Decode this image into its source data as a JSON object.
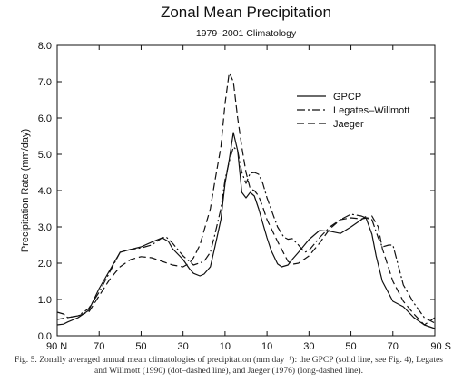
{
  "chart_data": {
    "type": "line",
    "title": "Zonal Mean Precipitation",
    "subtitle": "1979–2001 Climatology",
    "ylabel": "Precipitation Rate (mm/day)",
    "xlabel": "",
    "xlim": [
      -90,
      90
    ],
    "ylim": [
      0,
      8
    ],
    "x_ticks": [
      -90,
      -70,
      -50,
      -30,
      -10,
      10,
      30,
      50,
      70,
      90
    ],
    "x_tick_labels": [
      "90 N",
      "70",
      "50",
      "30",
      "10",
      "10",
      "30",
      "50",
      "70",
      "90 S"
    ],
    "y_ticks": [
      0,
      1,
      2,
      3,
      4,
      5,
      6,
      7,
      8
    ],
    "y_tick_labels": [
      "0.0",
      "1.0",
      "2.0",
      "3.0",
      "4.0",
      "5.0",
      "6.0",
      "7.0",
      "8.0"
    ],
    "legend_position": "upper-right",
    "grid": false,
    "series": [
      {
        "name": "GPCP",
        "style": "solid",
        "x": [
          -90,
          -87,
          -85,
          -80,
          -75,
          -70,
          -65,
          -60,
          -55,
          -50,
          -45,
          -40,
          -37,
          -35,
          -30,
          -27,
          -25,
          -22,
          -20,
          -17,
          -15,
          -12,
          -10,
          -8,
          -6,
          -4,
          -2,
          0,
          2,
          4,
          6,
          8,
          10,
          12,
          15,
          17,
          20,
          22,
          25,
          30,
          35,
          40,
          45,
          50,
          55,
          57,
          60,
          62,
          65,
          70,
          75,
          80,
          85,
          90
        ],
        "y": [
          0.3,
          0.32,
          0.38,
          0.5,
          0.7,
          1.3,
          1.8,
          2.3,
          2.38,
          2.45,
          2.58,
          2.7,
          2.6,
          2.4,
          2.1,
          1.85,
          1.72,
          1.65,
          1.7,
          1.9,
          2.4,
          3.2,
          4.2,
          4.85,
          5.6,
          5.1,
          3.95,
          3.8,
          3.95,
          3.85,
          3.5,
          3.1,
          2.7,
          2.35,
          1.98,
          1.9,
          1.95,
          2.1,
          2.3,
          2.65,
          2.9,
          2.88,
          2.82,
          3.0,
          3.2,
          3.28,
          2.8,
          2.2,
          1.5,
          0.95,
          0.8,
          0.5,
          0.3,
          0.2
        ]
      },
      {
        "name": "Legates–Willmott",
        "style": "dashdot",
        "x": [
          -90,
          -87,
          -85,
          -80,
          -75,
          -70,
          -65,
          -60,
          -55,
          -50,
          -45,
          -40,
          -38,
          -35,
          -30,
          -25,
          -20,
          -17,
          -15,
          -12,
          -10,
          -8,
          -6,
          -4,
          -2,
          0,
          2,
          4,
          6,
          8,
          10,
          15,
          18,
          20,
          22,
          25,
          28,
          30,
          35,
          40,
          45,
          50,
          55,
          57,
          60,
          63,
          65,
          68,
          70,
          75,
          80,
          85,
          90
        ],
        "y": [
          0.65,
          0.6,
          0.5,
          0.55,
          0.75,
          1.2,
          1.75,
          2.3,
          2.38,
          2.42,
          2.5,
          2.7,
          2.72,
          2.55,
          2.2,
          1.95,
          2.05,
          2.3,
          2.75,
          3.5,
          4.3,
          4.8,
          5.2,
          5.1,
          4.5,
          4.2,
          4.48,
          4.5,
          4.45,
          4.2,
          3.8,
          3.0,
          2.72,
          2.66,
          2.68,
          2.5,
          2.3,
          2.35,
          2.7,
          3.0,
          3.2,
          3.35,
          3.3,
          3.25,
          3.2,
          2.7,
          2.45,
          2.5,
          2.5,
          1.4,
          0.9,
          0.5,
          0.35
        ]
      },
      {
        "name": "Jaeger",
        "style": "dashed",
        "x": [
          -90,
          -85,
          -80,
          -75,
          -70,
          -65,
          -60,
          -55,
          -50,
          -45,
          -40,
          -35,
          -30,
          -27,
          -25,
          -22,
          -20,
          -17,
          -15,
          -12,
          -10,
          -8,
          -6,
          -4,
          -2,
          0,
          2,
          4,
          6,
          8,
          10,
          15,
          20,
          22,
          25,
          30,
          35,
          40,
          45,
          50,
          55,
          58,
          60,
          63,
          65,
          70,
          75,
          80,
          85,
          90
        ],
        "y": [
          0.45,
          0.5,
          0.55,
          0.65,
          1.1,
          1.55,
          1.9,
          2.1,
          2.18,
          2.15,
          2.05,
          1.95,
          1.9,
          2.0,
          2.15,
          2.5,
          2.9,
          3.5,
          4.2,
          5.2,
          6.4,
          7.25,
          7.0,
          6.0,
          5.2,
          4.5,
          4.05,
          4.0,
          3.85,
          3.55,
          3.2,
          2.6,
          2.05,
          1.97,
          2.0,
          2.2,
          2.55,
          2.95,
          3.2,
          3.25,
          3.22,
          3.25,
          3.3,
          3.0,
          2.4,
          1.5,
          0.95,
          0.6,
          0.3,
          0.5
        ]
      }
    ]
  },
  "caption": "Fig. 5. Zonally averaged annual mean climatologies of precipitation (mm day⁻¹): the GPCP (solid line, see Fig. 4), Legates and Willmott (1990) (dot–dashed line), and Jaeger (1976) (long-dashed line)."
}
